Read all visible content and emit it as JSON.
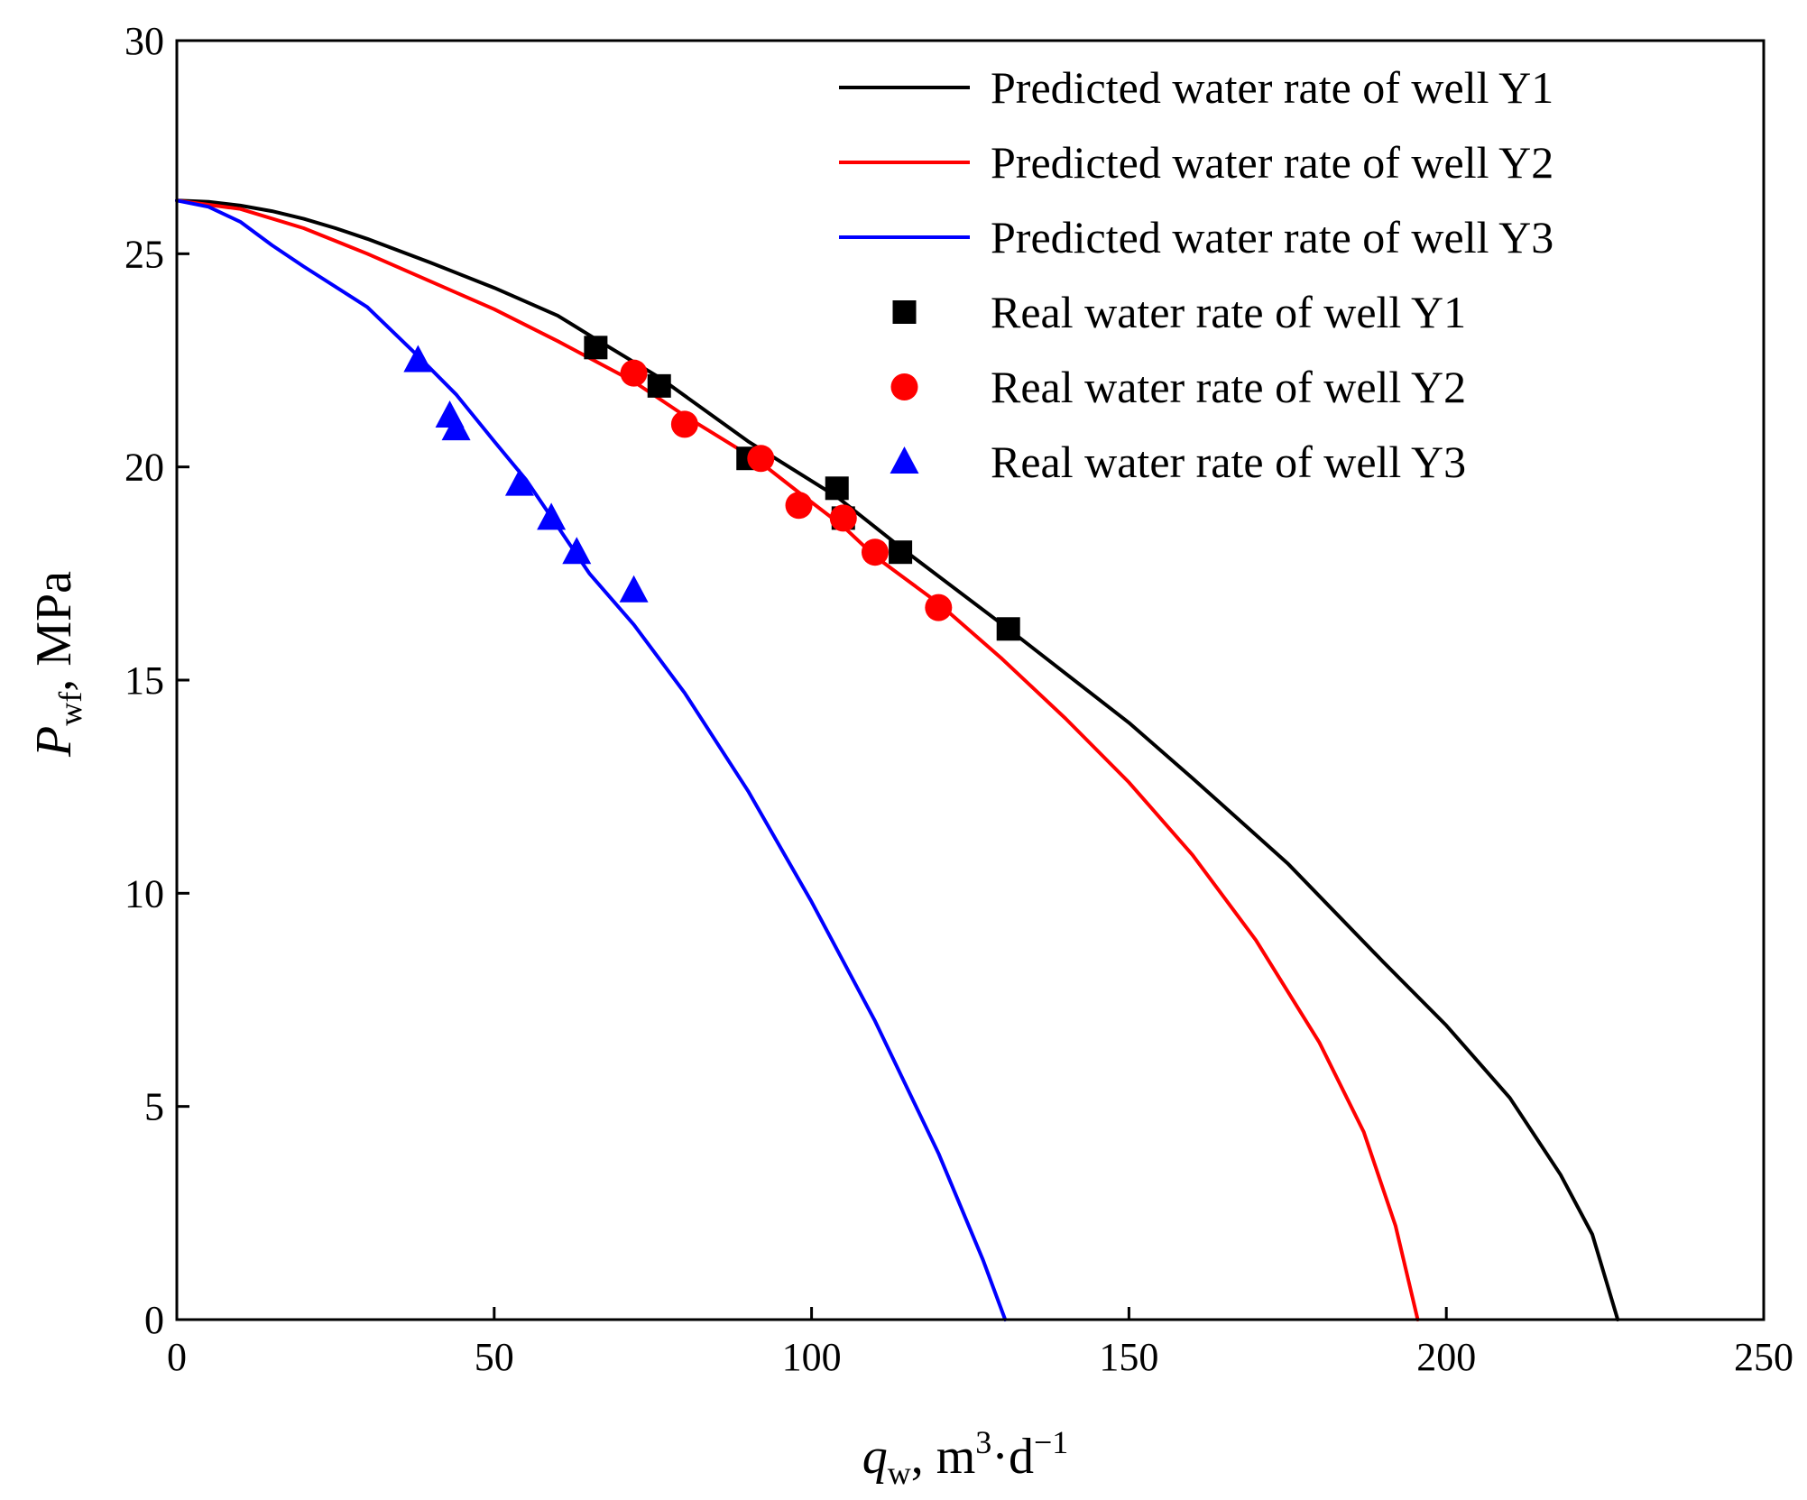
{
  "chart_data": {
    "type": "line",
    "title": "",
    "xlabel": {
      "var": "q",
      "sub": "w",
      "unit_prefix": ", m",
      "unit_sup1": "3",
      "unit_mid": "·d",
      "unit_sup2": "−1"
    },
    "ylabel": {
      "var": "P",
      "sub": "wf",
      "unit": ", MPa"
    },
    "xlim": [
      0,
      250
    ],
    "ylim": [
      0,
      30
    ],
    "xticks": [
      0,
      50,
      100,
      150,
      200,
      250
    ],
    "yticks": [
      0,
      5,
      10,
      15,
      20,
      25,
      30
    ],
    "grid": false,
    "legend_position": "top-right",
    "series": [
      {
        "name": "Predicted water rate of well Y1",
        "kind": "line",
        "color": "#000000",
        "points": [
          [
            0,
            26.25
          ],
          [
            5,
            26.22
          ],
          [
            10,
            26.13
          ],
          [
            15,
            26.0
          ],
          [
            20,
            25.82
          ],
          [
            25,
            25.6
          ],
          [
            30,
            25.35
          ],
          [
            40,
            24.79
          ],
          [
            50,
            24.2
          ],
          [
            60,
            23.55
          ],
          [
            66,
            23.0
          ],
          [
            76,
            22.1
          ],
          [
            90,
            20.6
          ],
          [
            104,
            19.3
          ],
          [
            115,
            18.0
          ],
          [
            131,
            16.2
          ],
          [
            150,
            14.0
          ],
          [
            160,
            12.7
          ],
          [
            175,
            10.7
          ],
          [
            190,
            8.4
          ],
          [
            200,
            6.9
          ],
          [
            210,
            5.2
          ],
          [
            218,
            3.4
          ],
          [
            223,
            2.0
          ],
          [
            227,
            0
          ]
        ]
      },
      {
        "name": "Predicted water rate of well Y2",
        "kind": "line",
        "color": "#ff0000",
        "points": [
          [
            0,
            26.25
          ],
          [
            10,
            26.05
          ],
          [
            20,
            25.6
          ],
          [
            30,
            25.0
          ],
          [
            40,
            24.35
          ],
          [
            50,
            23.7
          ],
          [
            60,
            22.95
          ],
          [
            72,
            22.0
          ],
          [
            80,
            21.2
          ],
          [
            92,
            20.1
          ],
          [
            98,
            19.4
          ],
          [
            105,
            18.6
          ],
          [
            110,
            17.9
          ],
          [
            120,
            16.8
          ],
          [
            130,
            15.5
          ],
          [
            140,
            14.1
          ],
          [
            150,
            12.6
          ],
          [
            160,
            10.9
          ],
          [
            170,
            8.9
          ],
          [
            180,
            6.5
          ],
          [
            187,
            4.4
          ],
          [
            192,
            2.2
          ],
          [
            195.5,
            0
          ]
        ]
      },
      {
        "name": "Predicted water rate of well Y3",
        "kind": "line",
        "color": "#0000ff",
        "points": [
          [
            0,
            26.25
          ],
          [
            5,
            26.1
          ],
          [
            10,
            25.75
          ],
          [
            15,
            25.2
          ],
          [
            20,
            24.7
          ],
          [
            30,
            23.75
          ],
          [
            38,
            22.6
          ],
          [
            44,
            21.7
          ],
          [
            50,
            20.6
          ],
          [
            55,
            19.7
          ],
          [
            60,
            18.6
          ],
          [
            65,
            17.5
          ],
          [
            72,
            16.3
          ],
          [
            80,
            14.7
          ],
          [
            90,
            12.4
          ],
          [
            100,
            9.8
          ],
          [
            110,
            7.0
          ],
          [
            120,
            3.9
          ],
          [
            127,
            1.4
          ],
          [
            130.5,
            0
          ]
        ]
      },
      {
        "name": "Real water rate of well Y1",
        "kind": "scatter",
        "marker": "square",
        "color": "#000000",
        "points": [
          [
            66,
            22.8
          ],
          [
            76,
            21.9
          ],
          [
            90,
            20.2
          ],
          [
            104,
            19.5
          ],
          [
            105,
            18.8
          ],
          [
            114,
            18.0
          ],
          [
            131,
            16.2
          ]
        ]
      },
      {
        "name": "Real water rate of well Y2",
        "kind": "scatter",
        "marker": "circle",
        "color": "#ff0000",
        "points": [
          [
            72,
            22.2
          ],
          [
            80,
            21.0
          ],
          [
            92,
            20.2
          ],
          [
            98,
            19.1
          ],
          [
            105,
            18.8
          ],
          [
            110,
            18.0
          ],
          [
            120,
            16.7
          ]
        ]
      },
      {
        "name": "Real water rate of well Y3",
        "kind": "scatter",
        "marker": "triangle",
        "color": "#0000ff",
        "points": [
          [
            38,
            22.5
          ],
          [
            43,
            21.2
          ],
          [
            44,
            20.9
          ],
          [
            54,
            19.6
          ],
          [
            59,
            18.8
          ],
          [
            63,
            18.0
          ],
          [
            72,
            17.1
          ]
        ]
      }
    ]
  }
}
